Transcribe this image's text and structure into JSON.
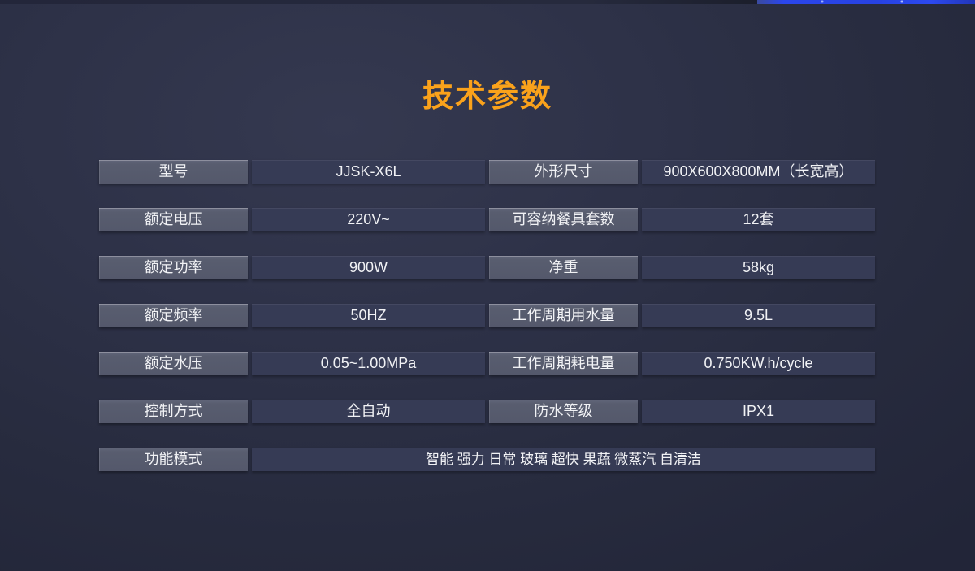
{
  "title": {
    "text": "技术参数"
  },
  "colors": {
    "accent_orange": "#FAA21B",
    "label_cell_bg": "#585d6f",
    "value_cell_bg": "#363b55",
    "background_dark_navy": "#2a2e43",
    "top_edge_blue": "#2742e2",
    "cell_text": "#f1f2f5"
  },
  "table": {
    "rows": [
      {
        "label1": "型号",
        "value1": "JJSK-X6L",
        "label2": "外形尺寸",
        "value2": "900X600X800MM（长宽高）"
      },
      {
        "label1": "额定电压",
        "value1": "220V~",
        "label2": "可容纳餐具套数",
        "value2": "12套"
      },
      {
        "label1": "额定功率",
        "value1": "900W",
        "label2": "净重",
        "value2": "58kg"
      },
      {
        "label1": "额定频率",
        "value1": "50HZ",
        "label2": "工作周期用水量",
        "value2": "9.5L"
      },
      {
        "label1": "额定水压",
        "value1": "0.05~1.00MPa",
        "label2": "工作周期耗电量",
        "value2": "0.750KW.h/cycle"
      },
      {
        "label1": "控制方式",
        "value1": "全自动",
        "label2": "防水等级",
        "value2": "IPX1"
      }
    ],
    "full_row": {
      "label": "功能模式",
      "value": "智能 强力 日常 玻璃 超快 果蔬 微蒸汽 自清洁"
    }
  }
}
